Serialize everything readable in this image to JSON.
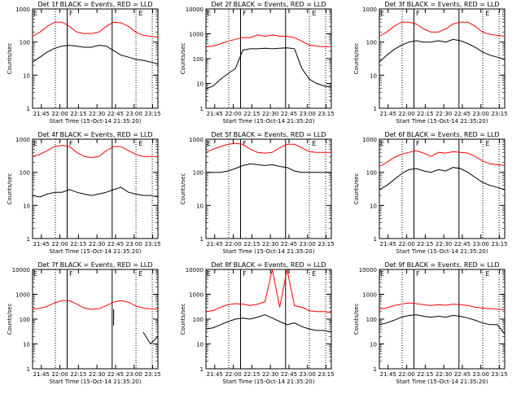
{
  "chart_data": [
    {
      "type": "line",
      "title": "Det 1f BLACK = Events, RED = LLD",
      "xlabel": "Start Time (15-Oct-14 21:35:20)",
      "ylabel": "Counts/sec",
      "x_ticks": [
        "21:45",
        "22:00",
        "22:15",
        "22:30",
        "22:45",
        "23:00",
        "23:15"
      ],
      "y_ticks": [
        "1",
        "10",
        "100",
        "1000"
      ],
      "ylim": [
        1,
        1000
      ],
      "yscale": "log",
      "markers": [
        "E",
        "F",
        "E"
      ],
      "series": [
        {
          "name": "BLACK = Events",
          "color": "#000000",
          "values": [
            25,
            35,
            50,
            65,
            75,
            80,
            75,
            70,
            70,
            80,
            75,
            55,
            40,
            35,
            30,
            28,
            25,
            22
          ]
        },
        {
          "name": "RED = LLD",
          "color": "#ff0000",
          "values": [
            150,
            200,
            300,
            400,
            400,
            300,
            200,
            180,
            180,
            200,
            300,
            400,
            380,
            300,
            200,
            160,
            150,
            140
          ]
        }
      ]
    },
    {
      "type": "line",
      "title": "Det 2f BLACK = Events, RED = LLD",
      "xlabel": "Start Time (15-Oct-14 21:35:20)",
      "ylabel": "Counts/sec",
      "x_ticks": [
        "21:45",
        "22:00",
        "22:15",
        "22:30",
        "22:45",
        "23:00",
        "23:15"
      ],
      "y_ticks": [
        "1",
        "10",
        "100",
        "1000",
        "10000"
      ],
      "ylim": [
        1,
        10000
      ],
      "yscale": "log",
      "markers": [
        "E",
        "F",
        "E"
      ],
      "series": [
        {
          "name": "BLACK = Events",
          "color": "#000000",
          "values": [
            6,
            8,
            15,
            25,
            40,
            220,
            250,
            250,
            260,
            250,
            260,
            270,
            250,
            40,
            15,
            10,
            8,
            7
          ]
        },
        {
          "name": "RED = LLD",
          "color": "#ff0000",
          "values": [
            300,
            320,
            400,
            500,
            600,
            700,
            700,
            900,
            800,
            900,
            800,
            800,
            700,
            500,
            350,
            320,
            300,
            300
          ]
        }
      ]
    },
    {
      "type": "line",
      "title": "Det 3f BLACK = Events, RED = LLD",
      "xlabel": "Start Time (15-Oct-14 21:35:20)",
      "ylabel": "Counts/sec",
      "x_ticks": [
        "21:45",
        "22:00",
        "22:15",
        "22:30",
        "22:45",
        "23:00",
        "23:15"
      ],
      "y_ticks": [
        "1",
        "10",
        "100",
        "1000"
      ],
      "ylim": [
        1,
        1000
      ],
      "yscale": "log",
      "markers": [
        "E",
        "F",
        "E"
      ],
      "series": [
        {
          "name": "BLACK = Events",
          "color": "#000000",
          "values": [
            25,
            40,
            60,
            80,
            100,
            110,
            100,
            100,
            110,
            100,
            120,
            110,
            90,
            70,
            50,
            40,
            35,
            30
          ]
        },
        {
          "name": "RED = LLD",
          "color": "#ff0000",
          "values": [
            150,
            200,
            300,
            400,
            400,
            350,
            250,
            200,
            200,
            250,
            350,
            400,
            400,
            300,
            200,
            170,
            160,
            150
          ]
        }
      ]
    },
    {
      "type": "line",
      "title": "Det 4f BLACK = Events, RED = LLD",
      "xlabel": "Start Time (15-Oct-14 21:35:20)",
      "ylabel": "Counts/sec",
      "x_ticks": [
        "21:45",
        "22:00",
        "22:15",
        "22:30",
        "22:45",
        "23:00",
        "23:15"
      ],
      "y_ticks": [
        "1",
        "10",
        "100",
        "1000"
      ],
      "ylim": [
        1,
        1000
      ],
      "yscale": "log",
      "markers": [
        "E",
        "F",
        "E"
      ],
      "series": [
        {
          "name": "BLACK = Events",
          "color": "#000000",
          "values": [
            20,
            18,
            22,
            25,
            25,
            30,
            25,
            22,
            20,
            22,
            25,
            30,
            35,
            25,
            22,
            20,
            20,
            18
          ]
        },
        {
          "name": "RED = LLD",
          "color": "#ff0000",
          "values": [
            300,
            350,
            450,
            600,
            650,
            600,
            400,
            300,
            280,
            300,
            450,
            600,
            600,
            450,
            350,
            300,
            300,
            300
          ]
        }
      ]
    },
    {
      "type": "line",
      "title": "Det 5f BLACK = Events, RED = LLD",
      "xlabel": "Start Time (15-Oct-14 21:35:20)",
      "ylabel": "Counts/sec",
      "x_ticks": [
        "21:45",
        "22:00",
        "22:15",
        "22:30",
        "22:45",
        "23:00",
        "23:15"
      ],
      "y_ticks": [
        "1",
        "10",
        "100",
        "1000"
      ],
      "ylim": [
        1,
        1000
      ],
      "yscale": "log",
      "markers": [
        "E",
        "F",
        "E"
      ],
      "series": [
        {
          "name": "BLACK = Events",
          "color": "#000000",
          "values": [
            100,
            100,
            100,
            110,
            130,
            160,
            180,
            170,
            160,
            170,
            150,
            140,
            110,
            100,
            100,
            100,
            100,
            100
          ]
        },
        {
          "name": "RED = LLD",
          "color": "#ff0000",
          "values": [
            400,
            500,
            600,
            700,
            750,
            700,
            500,
            400,
            380,
            400,
            550,
            700,
            700,
            550,
            420,
            400,
            400,
            400
          ]
        }
      ]
    },
    {
      "type": "line",
      "title": "Det 6f BLACK = Events, RED = LLD",
      "xlabel": "Start Time (15-Oct-14 21:35:20)",
      "ylabel": "Counts/sec",
      "x_ticks": [
        "21:45",
        "22:00",
        "22:15",
        "22:30",
        "22:45",
        "23:00",
        "23:15"
      ],
      "y_ticks": [
        "1",
        "10",
        "100",
        "1000"
      ],
      "ylim": [
        1,
        1000
      ],
      "yscale": "log",
      "markers": [
        "E",
        "F",
        "E"
      ],
      "series": [
        {
          "name": "BLACK = Events",
          "color": "#000000",
          "values": [
            30,
            40,
            60,
            90,
            120,
            130,
            110,
            100,
            120,
            110,
            140,
            130,
            100,
            70,
            50,
            40,
            35,
            30
          ]
        },
        {
          "name": "RED = LLD",
          "color": "#ff0000",
          "values": [
            150,
            200,
            280,
            350,
            400,
            450,
            380,
            300,
            400,
            380,
            420,
            400,
            380,
            300,
            220,
            180,
            170,
            160
          ]
        }
      ]
    },
    {
      "type": "line",
      "title": "Det 7f BLACK = Events, RED = LLD",
      "xlabel": "Start Time (15-Oct-14 21:35:20)",
      "ylabel": "Counts/sec",
      "x_ticks": [
        "21:45",
        "22:00",
        "22:15",
        "22:30",
        "22:45",
        "23:00",
        "23:15"
      ],
      "y_ticks": [
        "1",
        "10",
        "100",
        "1000",
        "10000"
      ],
      "ylim": [
        1,
        10000
      ],
      "yscale": "log",
      "markers": [
        "E",
        "F",
        "E"
      ],
      "series": [
        {
          "name": "BLACK = Events",
          "color": "#000000",
          "values": [
            null,
            null,
            null,
            null,
            null,
            null,
            null,
            null,
            null,
            null,
            null,
            250,
            null,
            null,
            null,
            30,
            10,
            20
          ]
        },
        {
          "name": "RED = LLD",
          "color": "#ff0000",
          "values": [
            250,
            270,
            330,
            450,
            560,
            550,
            400,
            280,
            250,
            260,
            350,
            480,
            560,
            480,
            340,
            280,
            260,
            250
          ]
        }
      ]
    },
    {
      "type": "line",
      "title": "Det 8f BLACK = Events, RED = LLD",
      "xlabel": "Start Time (15-Oct-14 21:35:20)",
      "ylabel": "Counts/sec",
      "x_ticks": [
        "21:45",
        "22:00",
        "22:15",
        "22:30",
        "22:45",
        "23:00",
        "23:15"
      ],
      "y_ticks": [
        "1",
        "10",
        "100",
        "1000",
        "10000"
      ],
      "ylim": [
        1,
        10000
      ],
      "yscale": "log",
      "markers": [
        "E",
        "F",
        "E"
      ],
      "series": [
        {
          "name": "BLACK = Events",
          "color": "#000000",
          "values": [
            40,
            45,
            60,
            80,
            100,
            110,
            100,
            120,
            150,
            110,
            80,
            60,
            70,
            50,
            40,
            35,
            35,
            30
          ]
        },
        {
          "name": "RED = LLD",
          "color": "#ff0000",
          "values": [
            200,
            220,
            300,
            380,
            420,
            400,
            350,
            400,
            500,
            10000,
            300,
            10000,
            350,
            300,
            220,
            200,
            200,
            180
          ]
        }
      ]
    },
    {
      "type": "line",
      "title": "Det 9f BLACK = Events, RED = LLD",
      "xlabel": "Start Time (15-Oct-14 21:35:20)",
      "ylabel": "Counts/sec",
      "x_ticks": [
        "21:45",
        "22:00",
        "22:15",
        "22:30",
        "22:45",
        "23:00",
        "23:15"
      ],
      "y_ticks": [
        "1",
        "10",
        "100",
        "1000",
        "10000"
      ],
      "ylim": [
        1,
        10000
      ],
      "yscale": "log",
      "markers": [
        "E",
        "F",
        "E"
      ],
      "series": [
        {
          "name": "BLACK = Events",
          "color": "#000000",
          "values": [
            60,
            70,
            90,
            120,
            140,
            150,
            130,
            120,
            130,
            120,
            140,
            130,
            110,
            90,
            70,
            60,
            60,
            25
          ]
        },
        {
          "name": "RED = LLD",
          "color": "#ff0000",
          "values": [
            250,
            280,
            350,
            400,
            450,
            420,
            380,
            350,
            380,
            360,
            400,
            380,
            350,
            300,
            280,
            260,
            250,
            240
          ]
        }
      ]
    }
  ]
}
